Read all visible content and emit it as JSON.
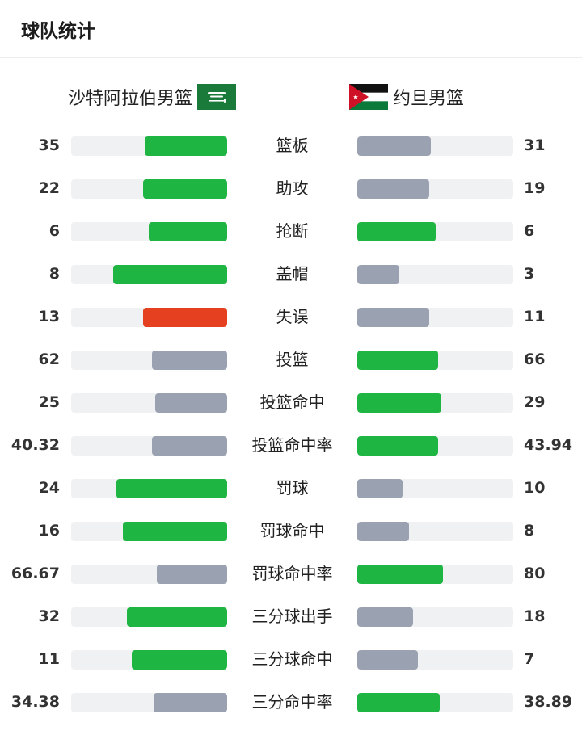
{
  "header": {
    "title": "球队统计"
  },
  "teams": {
    "left": {
      "name": "沙特阿拉伯男篮",
      "flag": "saudi-arabia-flag-icon"
    },
    "right": {
      "name": "约旦男篮",
      "flag": "jordan-flag-icon"
    }
  },
  "colors": {
    "win": "#1fb543",
    "lose": "#9aa1b0",
    "turnover_highlight": "#e5401f",
    "track": "#f0f1f3"
  },
  "stats": [
    {
      "label": "篮板",
      "left": "35",
      "right": "31",
      "left_ratio": 0.53,
      "right_ratio": 0.47,
      "left_color": "win",
      "right_color": "lose"
    },
    {
      "label": "助攻",
      "left": "22",
      "right": "19",
      "left_ratio": 0.54,
      "right_ratio": 0.46,
      "left_color": "win",
      "right_color": "lose"
    },
    {
      "label": "抢断",
      "left": "6",
      "right": "6",
      "left_ratio": 0.5,
      "right_ratio": 0.5,
      "left_color": "win",
      "right_color": "win"
    },
    {
      "label": "盖帽",
      "left": "8",
      "right": "3",
      "left_ratio": 0.73,
      "right_ratio": 0.27,
      "left_color": "win",
      "right_color": "lose"
    },
    {
      "label": "失误",
      "left": "13",
      "right": "11",
      "left_ratio": 0.54,
      "right_ratio": 0.46,
      "left_color": "turnover_highlight",
      "right_color": "lose"
    },
    {
      "label": "投篮",
      "left": "62",
      "right": "66",
      "left_ratio": 0.48,
      "right_ratio": 0.52,
      "left_color": "lose",
      "right_color": "win"
    },
    {
      "label": "投篮命中",
      "left": "25",
      "right": "29",
      "left_ratio": 0.46,
      "right_ratio": 0.54,
      "left_color": "lose",
      "right_color": "win"
    },
    {
      "label": "投篮命中率",
      "left": "40.32",
      "right": "43.94",
      "left_ratio": 0.48,
      "right_ratio": 0.52,
      "left_color": "lose",
      "right_color": "win"
    },
    {
      "label": "罚球",
      "left": "24",
      "right": "10",
      "left_ratio": 0.71,
      "right_ratio": 0.29,
      "left_color": "win",
      "right_color": "lose"
    },
    {
      "label": "罚球命中",
      "left": "16",
      "right": "8",
      "left_ratio": 0.67,
      "right_ratio": 0.33,
      "left_color": "win",
      "right_color": "lose"
    },
    {
      "label": "罚球命中率",
      "left": "66.67",
      "right": "80",
      "left_ratio": 0.45,
      "right_ratio": 0.55,
      "left_color": "lose",
      "right_color": "win"
    },
    {
      "label": "三分球出手",
      "left": "32",
      "right": "18",
      "left_ratio": 0.64,
      "right_ratio": 0.36,
      "left_color": "win",
      "right_color": "lose"
    },
    {
      "label": "三分球命中",
      "left": "11",
      "right": "7",
      "left_ratio": 0.61,
      "right_ratio": 0.39,
      "left_color": "win",
      "right_color": "lose"
    },
    {
      "label": "三分命中率",
      "left": "34.38",
      "right": "38.89",
      "left_ratio": 0.47,
      "right_ratio": 0.53,
      "left_color": "lose",
      "right_color": "win"
    }
  ]
}
